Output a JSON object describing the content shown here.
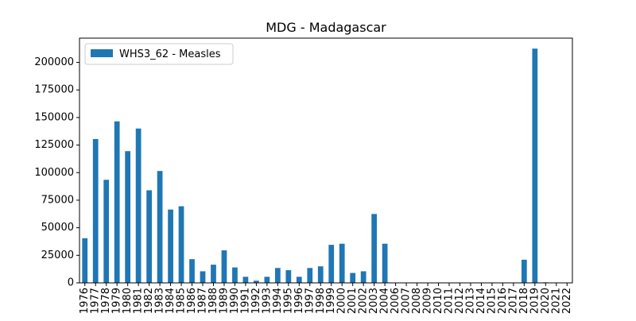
{
  "chart_data": {
    "type": "bar",
    "title": "MDG - Madagascar",
    "xlabel": "",
    "ylabel": "",
    "ylim": [
      0,
      222000
    ],
    "yticks": [
      0,
      25000,
      50000,
      75000,
      100000,
      125000,
      150000,
      175000,
      200000
    ],
    "grid": false,
    "legend_position": "top-left",
    "categories": [
      "1976",
      "1977",
      "1978",
      "1979",
      "1980",
      "1981",
      "1982",
      "1983",
      "1984",
      "1985",
      "1986",
      "1987",
      "1988",
      "1989",
      "1990",
      "1991",
      "1992",
      "1993",
      "1994",
      "1995",
      "1996",
      "1997",
      "1998",
      "1999",
      "2000",
      "2001",
      "2002",
      "2003",
      "2004",
      "2006",
      "2007",
      "2008",
      "2009",
      "2010",
      "2011",
      "2012",
      "2013",
      "2014",
      "2015",
      "2016",
      "2017",
      "2018",
      "2019",
      "2020",
      "2021",
      "2022"
    ],
    "series": [
      {
        "name": "WHS3_62 - Measles",
        "color": "#1f77b4",
        "values": [
          40500,
          130500,
          93500,
          146500,
          119500,
          140000,
          84000,
          101500,
          66500,
          69500,
          21500,
          10500,
          16500,
          29500,
          14000,
          5500,
          2000,
          5500,
          13500,
          11500,
          5500,
          13500,
          15000,
          34500,
          35500,
          9000,
          10500,
          62500,
          35500,
          0,
          0,
          0,
          0,
          0,
          0,
          0,
          0,
          0,
          0,
          0,
          0,
          21000,
          212500,
          500,
          0,
          0
        ]
      }
    ]
  }
}
